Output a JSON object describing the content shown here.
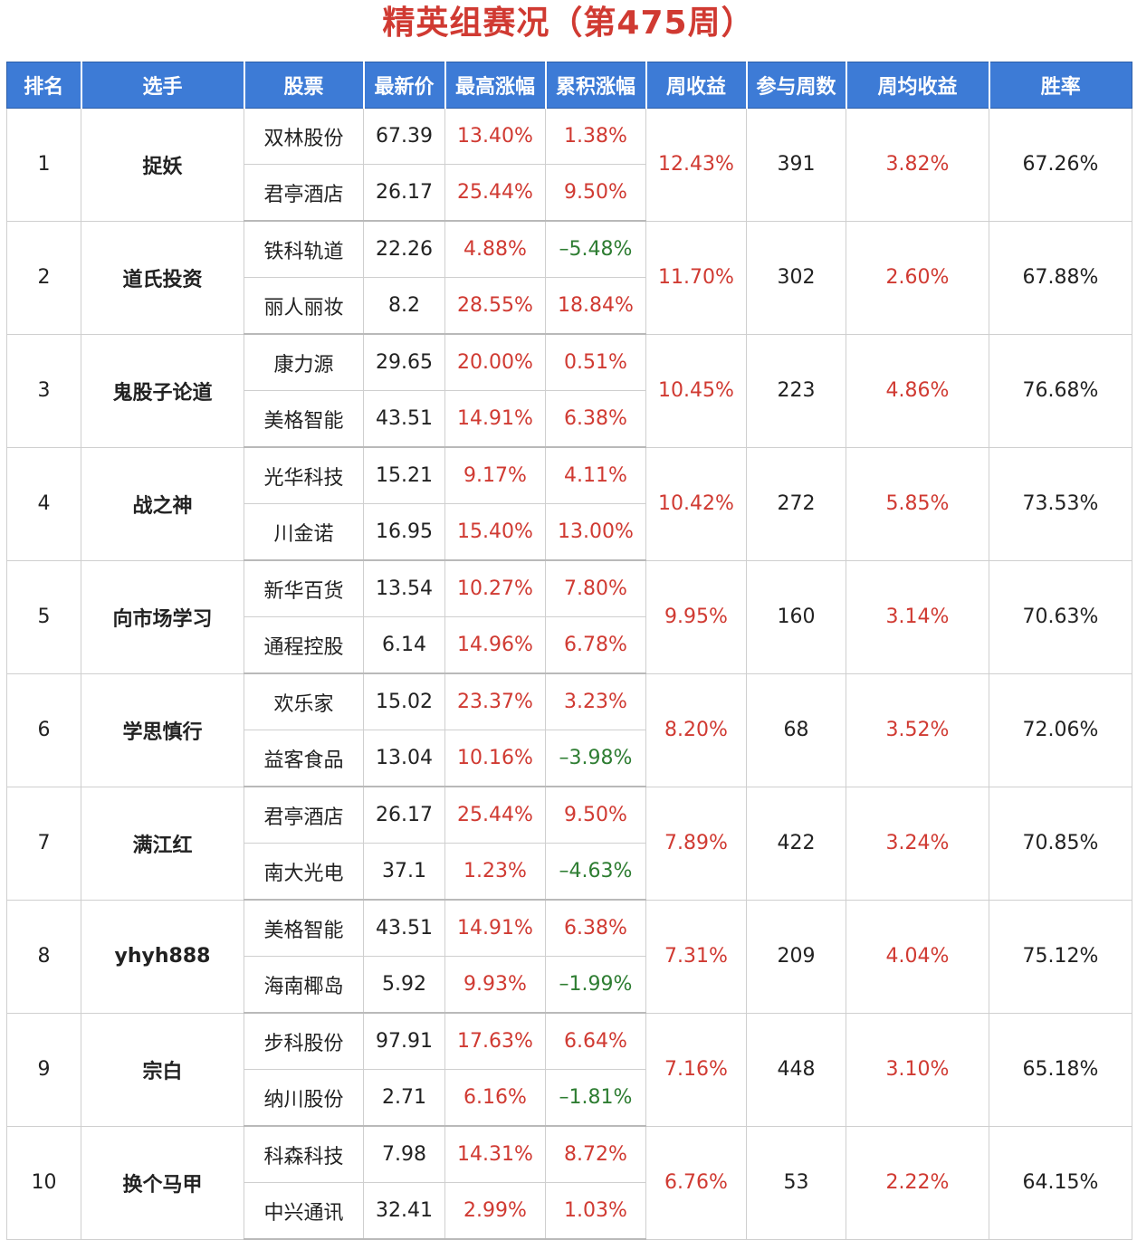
{
  "title": "精英组赛况（第475周）",
  "colors": {
    "header_bg": "#3d7bd6",
    "title": "#d03a32",
    "positive": "#d03a32",
    "negative": "#2e7d32",
    "link": "#2a5eb8"
  },
  "columns": [
    "排名",
    "选手",
    "股票",
    "最新价",
    "最高涨幅",
    "累积涨幅",
    "周收益",
    "参与周数",
    "周均收益",
    "胜率"
  ],
  "rows": [
    {
      "rank": "1",
      "player": "捉妖",
      "weekly_return": "12.43%",
      "weeks": "391",
      "avg_return": "3.82%",
      "win_rate": "67.26%",
      "stocks": [
        {
          "name": "双林股份",
          "price": "67.39",
          "max_gain": "13.40%",
          "cum_gain": "1.38%"
        },
        {
          "name": "君亭酒店",
          "price": "26.17",
          "max_gain": "25.44%",
          "cum_gain": "9.50%"
        }
      ]
    },
    {
      "rank": "2",
      "player": "道氏投资",
      "weekly_return": "11.70%",
      "weeks": "302",
      "avg_return": "2.60%",
      "win_rate": "67.88%",
      "stocks": [
        {
          "name": "铁科轨道",
          "price": "22.26",
          "max_gain": "4.88%",
          "cum_gain": "–5.48%"
        },
        {
          "name": "丽人丽妆",
          "price": "8.2",
          "max_gain": "28.55%",
          "cum_gain": "18.84%"
        }
      ]
    },
    {
      "rank": "3",
      "player": "鬼股子论道",
      "weekly_return": "10.45%",
      "weeks": "223",
      "avg_return": "4.86%",
      "win_rate": "76.68%",
      "stocks": [
        {
          "name": "康力源",
          "price": "29.65",
          "max_gain": "20.00%",
          "cum_gain": "0.51%"
        },
        {
          "name": "美格智能",
          "price": "43.51",
          "max_gain": "14.91%",
          "cum_gain": "6.38%"
        }
      ]
    },
    {
      "rank": "4",
      "player": "战之神",
      "weekly_return": "10.42%",
      "weeks": "272",
      "avg_return": "5.85%",
      "win_rate": "73.53%",
      "stocks": [
        {
          "name": "光华科技",
          "price": "15.21",
          "max_gain": "9.17%",
          "cum_gain": "4.11%"
        },
        {
          "name": "川金诺",
          "price": "16.95",
          "max_gain": "15.40%",
          "cum_gain": "13.00%"
        }
      ]
    },
    {
      "rank": "5",
      "player": "向市场学习",
      "weekly_return": "9.95%",
      "weeks": "160",
      "avg_return": "3.14%",
      "win_rate": "70.63%",
      "stocks": [
        {
          "name": "新华百货",
          "price": "13.54",
          "max_gain": "10.27%",
          "cum_gain": "7.80%"
        },
        {
          "name": "通程控股",
          "price": "6.14",
          "max_gain": "14.96%",
          "cum_gain": "6.78%"
        }
      ]
    },
    {
      "rank": "6",
      "player": "学思慎行",
      "weekly_return": "8.20%",
      "weeks": "68",
      "avg_return": "3.52%",
      "win_rate": "72.06%",
      "stocks": [
        {
          "name": "欢乐家",
          "price": "15.02",
          "max_gain": "23.37%",
          "cum_gain": "3.23%"
        },
        {
          "name": "益客食品",
          "price": "13.04",
          "max_gain": "10.16%",
          "cum_gain": "–3.98%"
        }
      ]
    },
    {
      "rank": "7",
      "player": "满江红",
      "weekly_return": "7.89%",
      "weeks": "422",
      "avg_return": "3.24%",
      "win_rate": "70.85%",
      "stocks": [
        {
          "name": "君亭酒店",
          "price": "26.17",
          "max_gain": "25.44%",
          "cum_gain": "9.50%"
        },
        {
          "name": "南大光电",
          "price": "37.1",
          "max_gain": "1.23%",
          "cum_gain": "–4.63%"
        }
      ]
    },
    {
      "rank": "8",
      "player": "yhyh888",
      "weekly_return": "7.31%",
      "weeks": "209",
      "avg_return": "4.04%",
      "win_rate": "75.12%",
      "stocks": [
        {
          "name": "美格智能",
          "price": "43.51",
          "max_gain": "14.91%",
          "cum_gain": "6.38%"
        },
        {
          "name": "海南椰岛",
          "price": "5.92",
          "max_gain": "9.93%",
          "cum_gain": "–1.99%"
        }
      ]
    },
    {
      "rank": "9",
      "player": "宗白",
      "weekly_return": "7.16%",
      "weeks": "448",
      "avg_return": "3.10%",
      "win_rate": "65.18%",
      "stocks": [
        {
          "name": "步科股份",
          "price": "97.91",
          "max_gain": "17.63%",
          "cum_gain": "6.64%"
        },
        {
          "name": "纳川股份",
          "price": "2.71",
          "max_gain": "6.16%",
          "cum_gain": "–1.81%"
        }
      ]
    },
    {
      "rank": "10",
      "player": "换个马甲",
      "weekly_return": "6.76%",
      "weeks": "53",
      "avg_return": "2.22%",
      "win_rate": "64.15%",
      "stocks": [
        {
          "name": "科森科技",
          "price": "7.98",
          "max_gain": "14.31%",
          "cum_gain": "8.72%"
        },
        {
          "name": "中兴通讯",
          "price": "32.41",
          "max_gain": "2.99%",
          "cum_gain": "1.03%"
        }
      ]
    }
  ]
}
